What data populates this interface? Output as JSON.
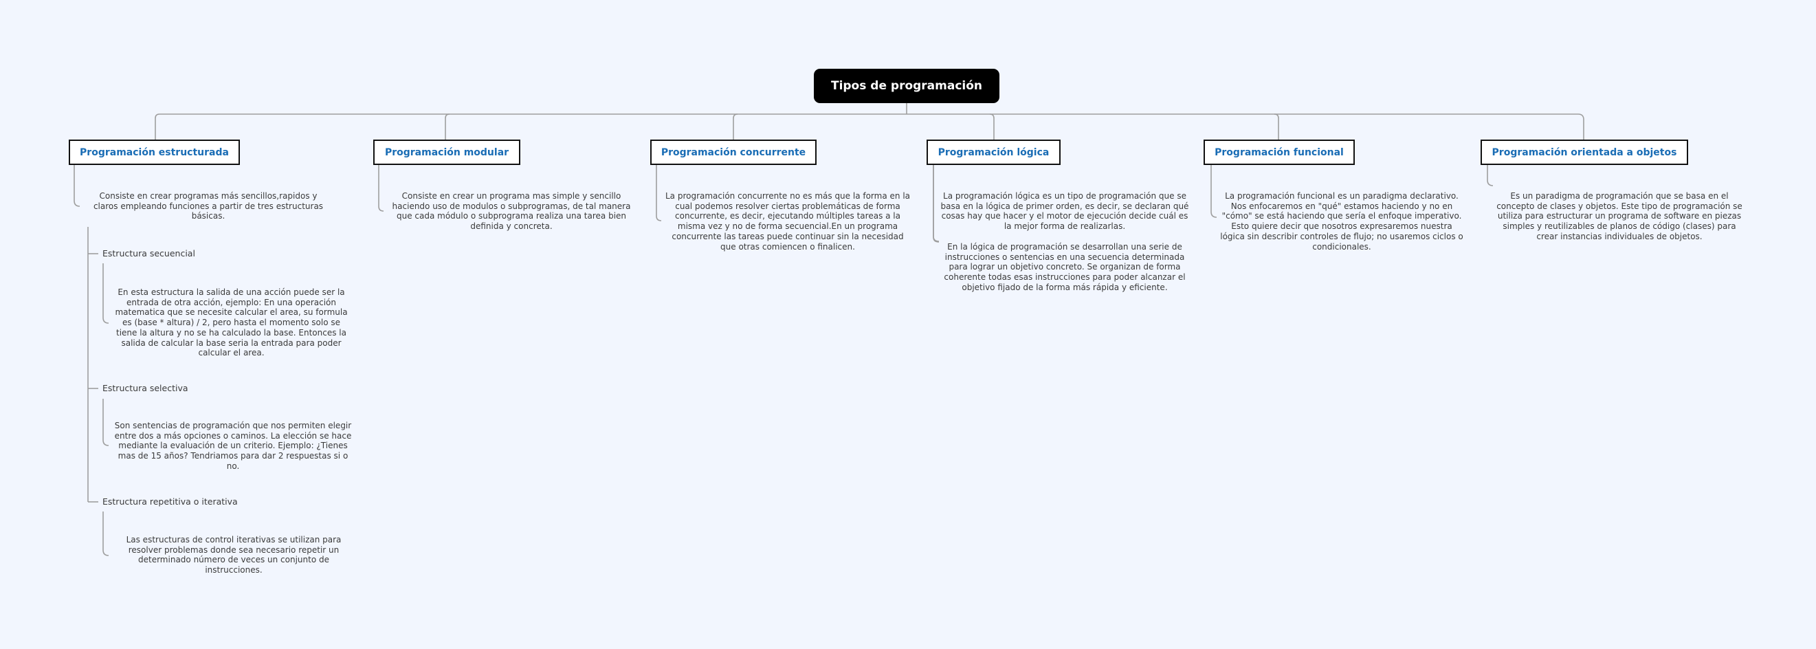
{
  "root": {
    "label": "Tipos de programación"
  },
  "topics": [
    {
      "label": "Programación estructurada",
      "desc": "Consiste en crear programas más sencillos,rapidos y claros empleando funciones a partir de tres estructuras básicas.",
      "subtopics": [
        {
          "label": "Estructura secuencial",
          "desc": "En esta estructura la salida de una acción puede ser la entrada de otra acción, ejemplo: En una operación matematica que se necesite calcular el area, su formula es (base * altura) / 2, pero hasta el momento solo se tiene la altura y no se ha calculado la base. Entonces la salida de calcular la base seria la entrada para poder calcular el area."
        },
        {
          "label": "Estructura selectiva",
          "desc": "Son sentencias de programación que nos permiten elegir entre dos a más opciones o caminos. La elección se hace mediante la evaluación de un criterio. Ejemplo: ¿Tienes mas de 15 años? Tendriamos para dar 2 respuestas si o no."
        },
        {
          "label": "Estructura repetitiva o iterativa",
          "desc": "Las estructuras de control iterativas se utilizan para resolver problemas donde sea necesario repetir un determinado número de veces un conjunto de instrucciones."
        }
      ]
    },
    {
      "label": "Programación modular",
      "desc": "Consiste en crear un programa mas simple y sencillo haciendo uso de modulos o subprogramas, de tal manera que cada módulo o subprograma realiza una tarea bien definida y concreta."
    },
    {
      "label": "Programación concurrente",
      "desc": "La programación concurrente no es más que la forma en la cual podemos resolver ciertas problemáticas de forma concurrente, es decir, ejecutando múltiples tareas a la misma vez y no de forma secuencial.En un programa concurrente las tareas puede continuar sin la necesidad que otras comiencen o finalicen."
    },
    {
      "label": "Programación lógica",
      "desc": "La programación lógica es un tipo de programación que se basa en la lógica de primer orden, es decir, se declaran qué cosas hay que hacer y el motor de ejecución decide cuál es la mejor forma de realizarlas.",
      "desc2": "En la lógica de programación se desarrollan una serie de instrucciones o sentencias en una secuencia determinada para lograr un objetivo concreto. Se organizan de forma coherente todas esas instrucciones para poder alcanzar el objetivo fijado de la forma más rápida y eficiente."
    },
    {
      "label": "Programación funcional",
      "desc": "La programación funcional es un paradigma declarativo. Nos enfocaremos en \"qué\" estamos haciendo y no en \"cómo\" se está haciendo que sería el enfoque imperativo. Esto quiere decir que nosotros expresaremos nuestra lógica sin describir controles de flujo; no usaremos ciclos o condicionales."
    },
    {
      "label": "Programación orientada a objetos",
      "desc": "Es un paradigma de programación que se basa en el concepto de clases y objetos. Este tipo de programación se utiliza para estructurar un programa de software en piezas simples y reutilizables de planos de código (clases) para crear instancias individuales de objetos."
    }
  ]
}
